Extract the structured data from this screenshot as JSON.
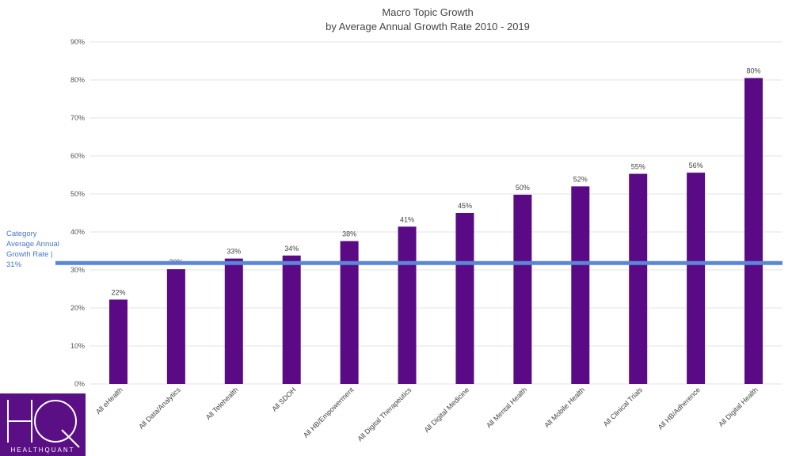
{
  "chart_data": {
    "type": "bar",
    "title_line1": "Macro Topic Growth",
    "title_line2": "by Average Annual Growth Rate 2010 - 2019",
    "xlabel": "",
    "ylabel": "",
    "ylim": [
      0,
      90
    ],
    "y_ticks": [
      0,
      10,
      20,
      30,
      40,
      50,
      60,
      70,
      80,
      90
    ],
    "y_tick_labels": [
      "0%",
      "10%",
      "20%",
      "30%",
      "40%",
      "50%",
      "60%",
      "70%",
      "80%",
      "90%"
    ],
    "grid": true,
    "legend": "none",
    "categories": [
      "All eHealth",
      "All Data/Analytics",
      "All Telehealth",
      "All SDOH",
      "All HB/Empowerment",
      "All Digital Therapeutics",
      "All Digital Medicine",
      "All Mental Health",
      "All Mobile Health",
      "All Clinical Trials",
      "All HB/Adherence",
      "All Digital Health"
    ],
    "values": [
      22.2,
      30.2,
      33.0,
      33.8,
      37.6,
      41.4,
      45.0,
      49.8,
      52.0,
      55.3,
      55.6,
      80.5
    ],
    "data_labels": [
      "22%",
      "30%",
      "33%",
      "34%",
      "38%",
      "41%",
      "45%",
      "50%",
      "52%",
      "55%",
      "56%",
      "80%"
    ],
    "reference_line": {
      "value": 31,
      "label_lines": [
        "Category",
        "Average Annual",
        "Growth Rate |",
        "31%"
      ],
      "color": "#5b86d6"
    },
    "colors": {
      "bar": "#5a0a85",
      "grid": "#e3e3e3"
    }
  },
  "logo": {
    "letters": "HQ",
    "brand": "HEALTHQUANT",
    "background": "#5a0f84"
  }
}
